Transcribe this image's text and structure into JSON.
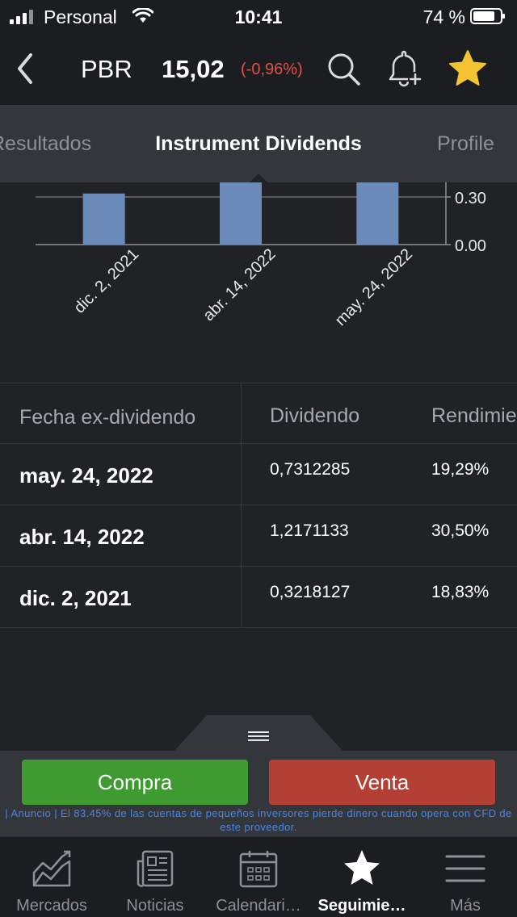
{
  "status_bar": {
    "carrier": "Personal",
    "time": "10:41",
    "battery": "74 %"
  },
  "header": {
    "symbol": "PBR",
    "price": "15,02",
    "change": "(-0,96%)",
    "colors": {
      "change": "#e4504a",
      "star": "#f3c332"
    },
    "icons": [
      "back-chevron-icon",
      "search-icon",
      "bell-plus-icon",
      "star-icon"
    ]
  },
  "tabs": {
    "prev": "Resultados",
    "active": "Instrument Dividends",
    "next": "Profile"
  },
  "chart_data": {
    "type": "bar",
    "categories": [
      "dic. 2, 2021",
      "abr. 14, 2022",
      "may. 24, 2022"
    ],
    "values": [
      0.3218127,
      1.2171133,
      0.7312285
    ],
    "ytick_labels": [
      "0.30",
      "0.00"
    ],
    "ylim": [
      0,
      0.3
    ],
    "bar_color": "#6a8bb8",
    "note": "chart scrolled; only lower portion visible"
  },
  "table": {
    "headers": [
      "Fecha ex-dividendo",
      "Dividendo",
      "Rendimiento"
    ],
    "rows": [
      {
        "date": "may. 24, 2022",
        "dividend": "0,7312285",
        "yield": "19,29%"
      },
      {
        "date": "abr. 14, 2022",
        "dividend": "1,2171133",
        "yield": "30,50%"
      },
      {
        "date": "dic. 2, 2021",
        "dividend": "0,3218127",
        "yield": "18,83%"
      }
    ]
  },
  "trade": {
    "buy_label": "Compra",
    "sell_label": "Venta",
    "disclaimer": "| Anuncio | El 83.45% de las cuentas de pequeños inversores pierde dinero cuando opera con CFD de este proveedor.",
    "colors": {
      "buy": "#3f9a32",
      "sell": "#b33f35",
      "disclaimer": "#4a86e8"
    }
  },
  "bottom_nav": {
    "items": [
      {
        "label": "Mercados",
        "icon": "chart-trend-icon"
      },
      {
        "label": "Noticias",
        "icon": "newspaper-icon"
      },
      {
        "label": "Calendari…",
        "icon": "calendar-icon"
      },
      {
        "label": "Seguimie…",
        "icon": "star-icon",
        "active": true
      },
      {
        "label": "Más",
        "icon": "hamburger-menu-icon"
      }
    ]
  }
}
